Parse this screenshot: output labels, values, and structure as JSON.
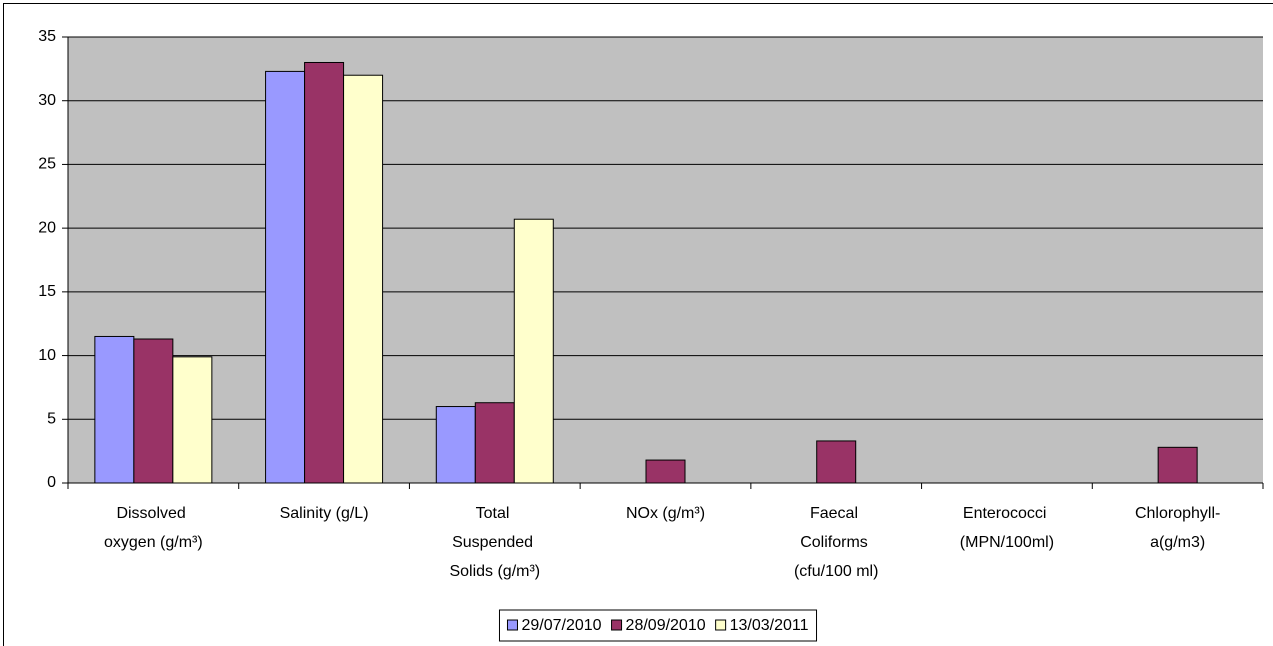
{
  "chart_data": {
    "type": "bar",
    "categories": [
      "Dissolved oxygen (g/m³)",
      "Salinity (g/L)",
      "Total Suspended Solids (g/m³)",
      "NOx (g/m³)",
      "Faecal Coliforms (cfu/100 ml)",
      "Enterococci (MPN/100ml)",
      "Chlorophyll-a(g/m3)"
    ],
    "series": [
      {
        "name": "29/07/2010",
        "color": "#9999ff",
        "values": [
          11.5,
          32.3,
          6.0,
          null,
          null,
          null,
          null
        ]
      },
      {
        "name": "28/09/2010",
        "color": "#993366",
        "values": [
          11.3,
          33.0,
          6.3,
          1.8,
          3.3,
          null,
          2.8
        ]
      },
      {
        "name": "13/03/2011",
        "color": "#ffffcc",
        "values": [
          9.9,
          32.0,
          20.7,
          null,
          null,
          null,
          null
        ]
      }
    ],
    "ylim": [
      0,
      35
    ],
    "yticks": [
      0,
      5,
      10,
      15,
      20,
      25,
      30,
      35
    ],
    "grid": true,
    "legend": "bottom"
  }
}
